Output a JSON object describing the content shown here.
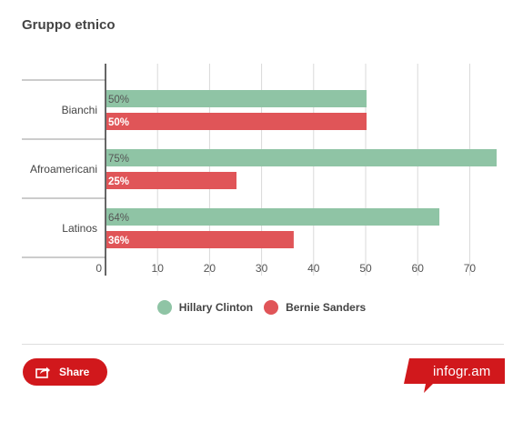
{
  "chart_data": {
    "type": "bar",
    "orientation": "horizontal",
    "title": "Gruppo etnico",
    "categories": [
      "Bianchi",
      "Afroamericani",
      "Latinos"
    ],
    "series": [
      {
        "name": "Hillary Clinton",
        "values": [
          50,
          75,
          64
        ],
        "labels": [
          "50%",
          "75%",
          "64%"
        ],
        "color": "#8fc4a5"
      },
      {
        "name": "Bernie Sanders",
        "values": [
          50,
          25,
          36
        ],
        "labels": [
          "50%",
          "25%",
          "36%"
        ],
        "color": "#e05558"
      }
    ],
    "xlim": [
      0,
      75
    ],
    "xticks": [
      0,
      10,
      20,
      30,
      40,
      50,
      60,
      70
    ],
    "grid": true,
    "legend_position": "bottom"
  },
  "footer": {
    "share_label": "Share",
    "brand": "infogr.am",
    "brand_color": "#d1181c"
  }
}
